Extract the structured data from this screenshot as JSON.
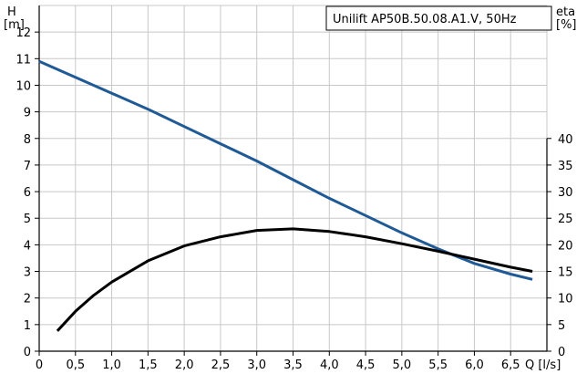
{
  "chart_data": {
    "type": "line",
    "title": "Unilift AP50B.50.08.A1.V, 50Hz",
    "left_axis_label": [
      "H",
      "[m]"
    ],
    "right_axis_label": [
      "eta",
      "[%]"
    ],
    "x_axis_label": "Q [l/s]",
    "xlim": [
      0,
      7
    ],
    "ylim_left": [
      0,
      13
    ],
    "ylim_right": [
      0,
      65
    ],
    "x_ticks": [
      0,
      0.5,
      1.0,
      1.5,
      2.0,
      2.5,
      3.0,
      3.5,
      4.0,
      4.5,
      5.0,
      5.5,
      6.0,
      6.5
    ],
    "x_tick_labels": [
      "0",
      "0,5",
      "1,0",
      "1,5",
      "2,0",
      "2,5",
      "3,0",
      "3,5",
      "4,0",
      "4,5",
      "5,0",
      "5,5",
      "6,0",
      "6,5"
    ],
    "y_left_ticks": [
      0,
      1,
      2,
      3,
      4,
      5,
      6,
      7,
      8,
      9,
      10,
      11,
      12
    ],
    "y_right_ticks": [
      0,
      5,
      10,
      15,
      20,
      25,
      30,
      35,
      40
    ],
    "grid": true,
    "series": [
      {
        "name": "H",
        "axis": "left",
        "color": "#1f5a96",
        "points": [
          [
            0,
            10.9
          ],
          [
            0.5,
            10.3
          ],
          [
            1.0,
            9.7
          ],
          [
            1.5,
            9.1
          ],
          [
            2.0,
            8.45
          ],
          [
            2.5,
            7.8
          ],
          [
            3.0,
            7.15
          ],
          [
            3.5,
            6.45
          ],
          [
            4.0,
            5.75
          ],
          [
            4.5,
            5.1
          ],
          [
            5.0,
            4.45
          ],
          [
            5.5,
            3.85
          ],
          [
            6.0,
            3.3
          ],
          [
            6.5,
            2.9
          ],
          [
            6.8,
            2.7
          ]
        ]
      },
      {
        "name": "eta",
        "axis": "right",
        "color": "#000000",
        "points": [
          [
            0.25,
            3.8
          ],
          [
            0.5,
            7.5
          ],
          [
            0.75,
            10.5
          ],
          [
            1.0,
            13.0
          ],
          [
            1.5,
            17.0
          ],
          [
            2.0,
            19.8
          ],
          [
            2.5,
            21.5
          ],
          [
            3.0,
            22.7
          ],
          [
            3.5,
            23.0
          ],
          [
            4.0,
            22.5
          ],
          [
            4.5,
            21.5
          ],
          [
            5.0,
            20.2
          ],
          [
            5.5,
            18.8
          ],
          [
            6.0,
            17.3
          ],
          [
            6.5,
            15.8
          ],
          [
            6.8,
            15.0
          ]
        ]
      }
    ]
  }
}
